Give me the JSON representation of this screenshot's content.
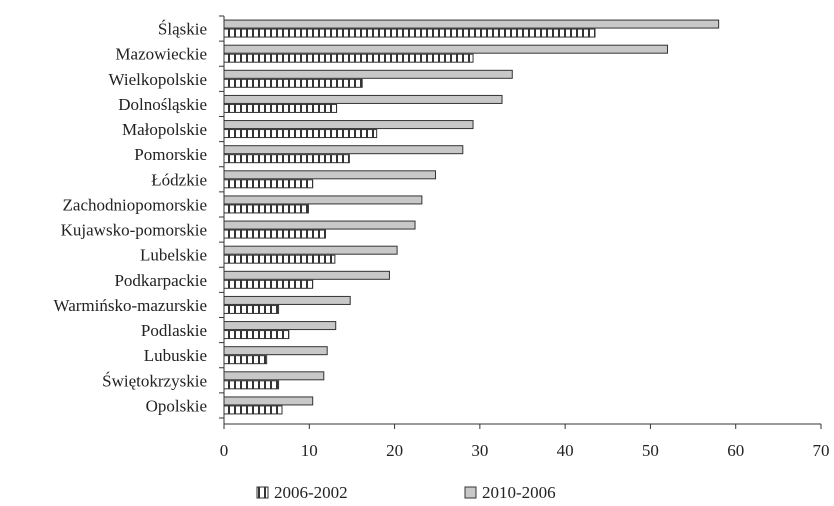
{
  "chart_data": {
    "type": "bar",
    "orientation": "horizontal",
    "categories": [
      "Śląskie",
      "Mazowieckie",
      "Wielkopolskie",
      "Dolnośląskie",
      "Małopolskie",
      "Pomorskie",
      "Łódzkie",
      "Zachodniopomorskie",
      "Kujawsko-pomorskie",
      "Lubelskie",
      "Podkarpackie",
      "Warmińsko-mazurskie",
      "Podlaskie",
      "Lubuskie",
      "Świętokrzyskie",
      "Opolskie"
    ],
    "series": [
      {
        "name": "2006-2002",
        "pattern": "striped",
        "values": [
          43.5,
          29.2,
          16.2,
          13.2,
          17.9,
          14.7,
          10.4,
          9.9,
          11.9,
          13.0,
          10.4,
          6.4,
          7.6,
          5.0,
          6.4,
          6.8
        ]
      },
      {
        "name": "2010-2006",
        "pattern": "solid",
        "values": [
          58.0,
          52.0,
          33.8,
          32.6,
          29.2,
          28.0,
          24.8,
          23.2,
          22.4,
          20.3,
          19.4,
          14.8,
          13.1,
          12.1,
          11.7,
          10.4
        ]
      }
    ],
    "xlim": [
      0,
      70
    ],
    "xticks": [
      0,
      10,
      20,
      30,
      40,
      50,
      60,
      70
    ],
    "title": "",
    "xlabel": "",
    "ylabel": "",
    "legend_position": "bottom",
    "colors": {
      "solid_fill": "#c8c8c8",
      "stroke": "#333333",
      "stripe": "#333333"
    }
  }
}
